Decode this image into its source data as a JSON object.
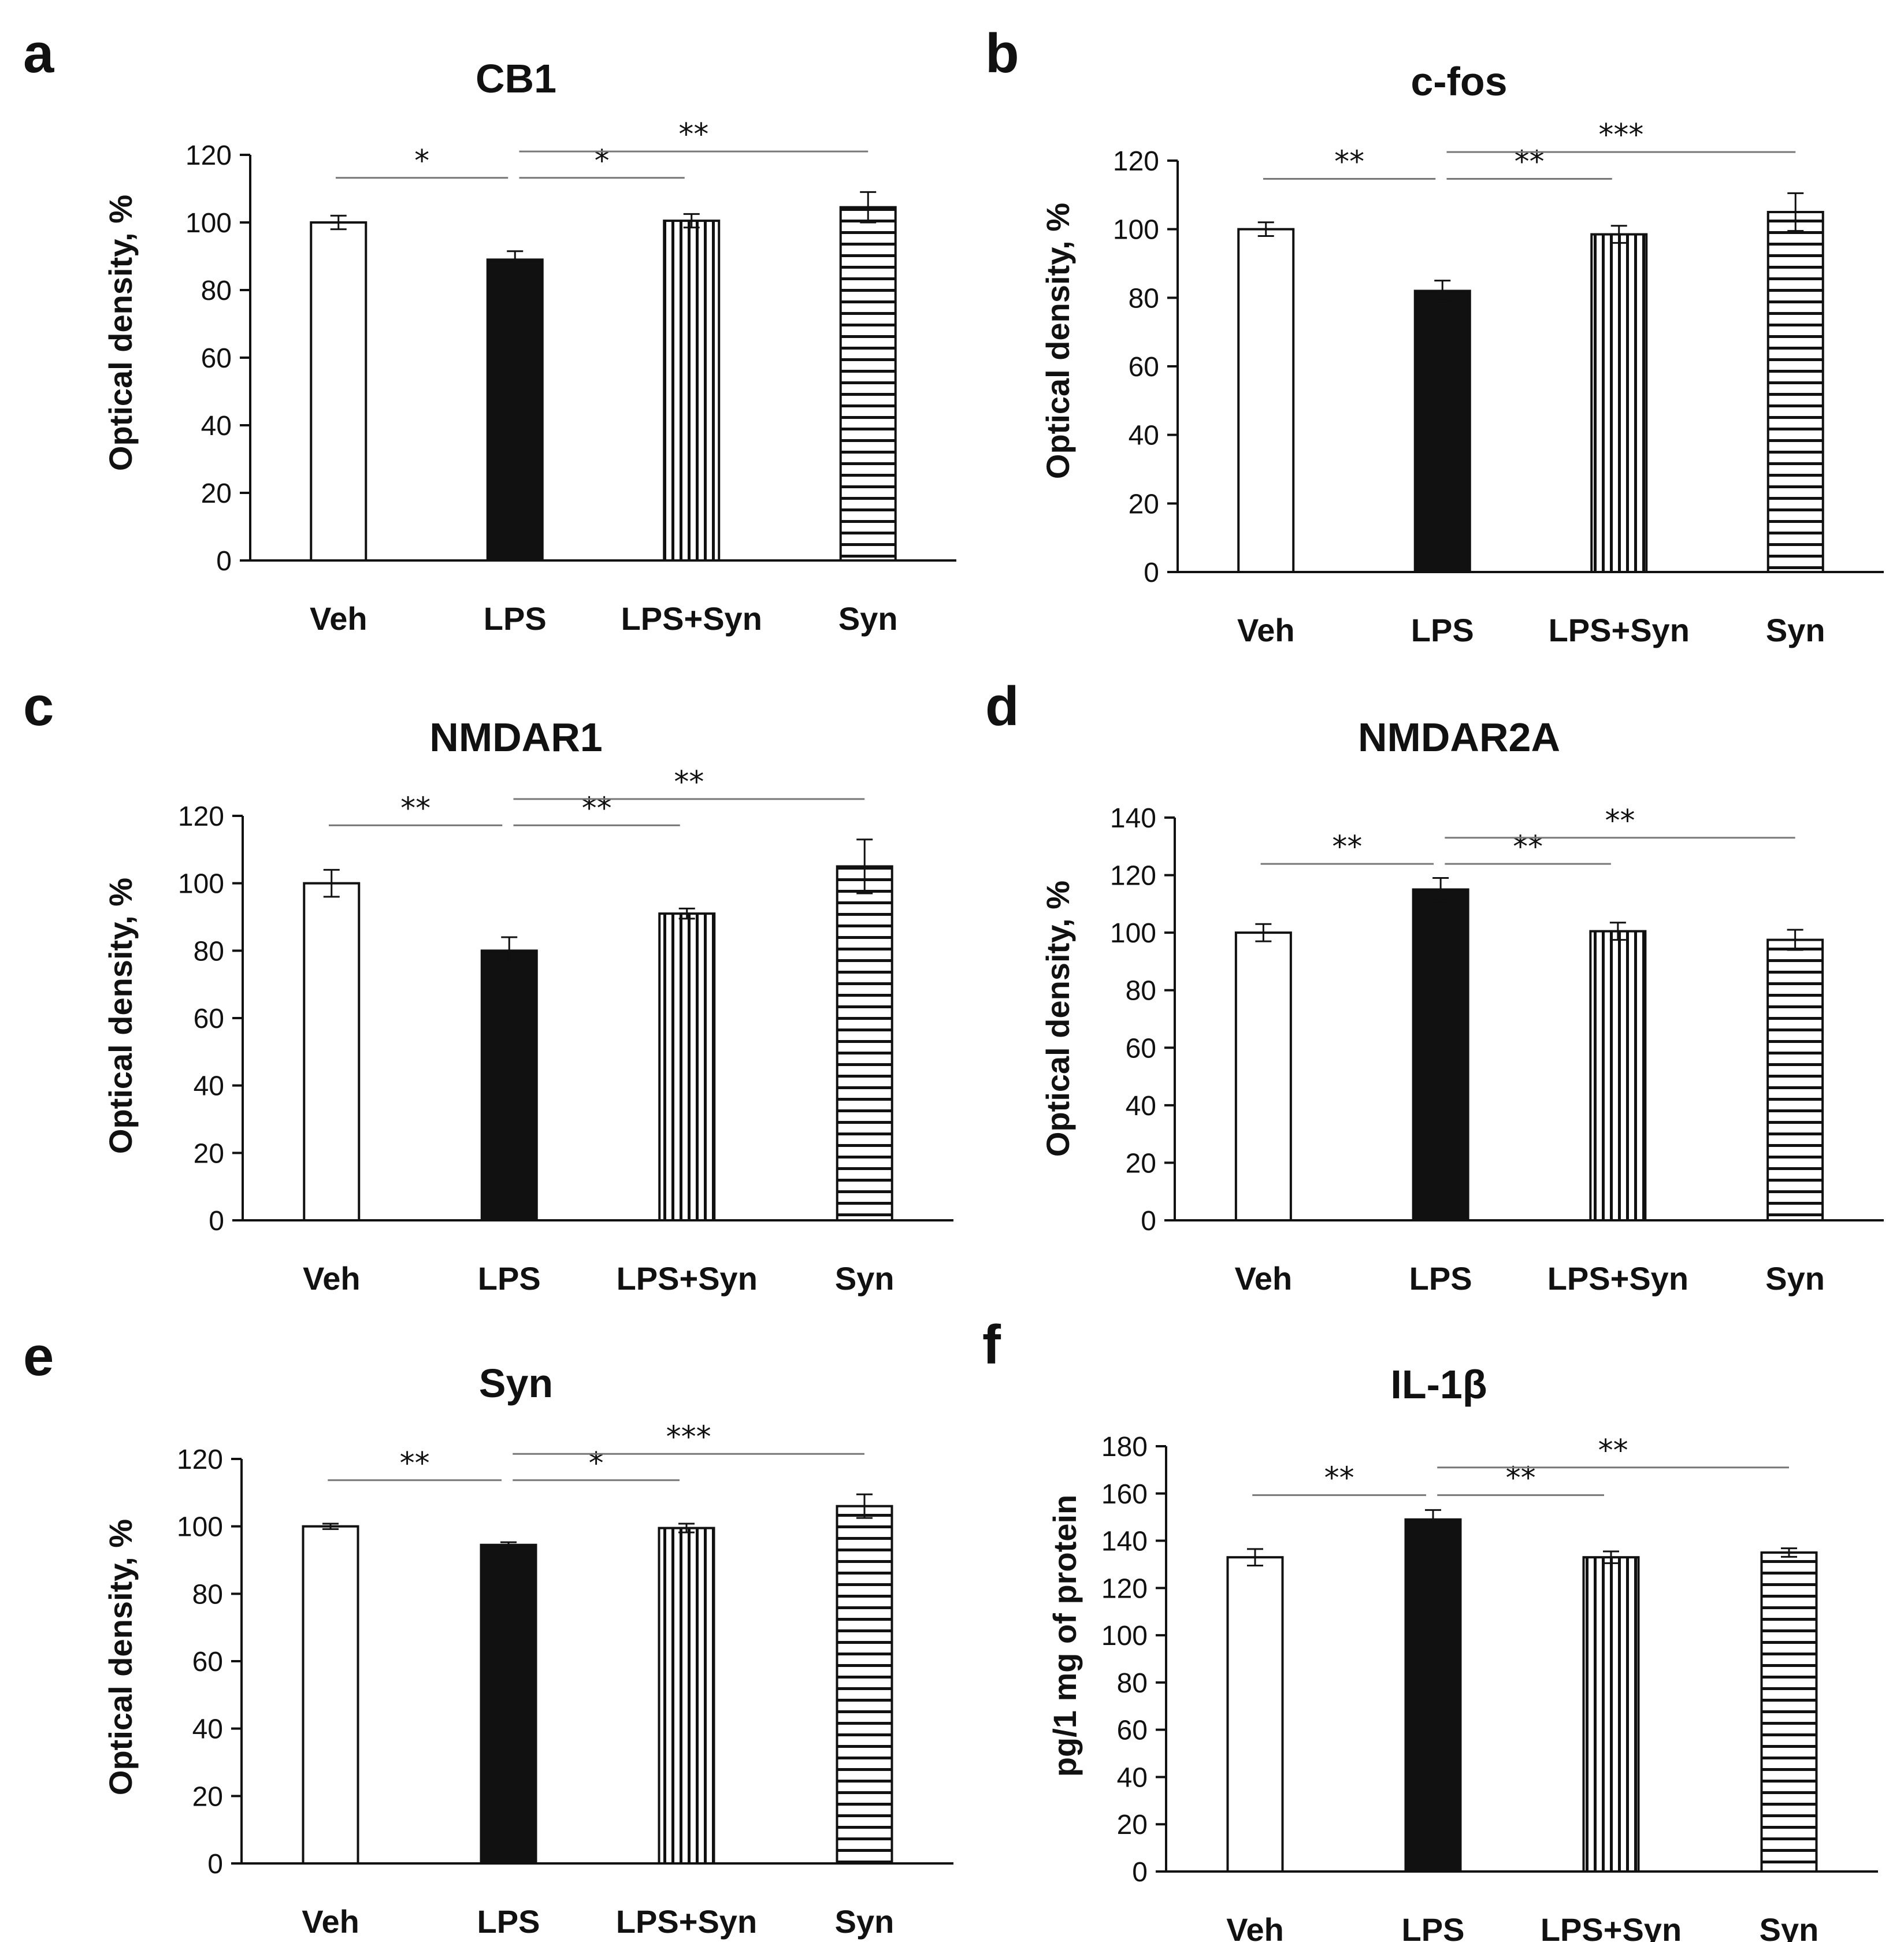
{
  "chart_data": [
    {
      "panel": "a",
      "type": "bar",
      "title": "CB1",
      "ylabel": "Optical density, %",
      "xlabel": "",
      "categories": [
        "Veh",
        "LPS",
        "LPS+Syn",
        "Syn"
      ],
      "values": [
        100,
        89,
        100.5,
        104.5
      ],
      "errors": [
        2,
        2.5,
        2,
        4.5
      ],
      "ylim": [
        0,
        120
      ],
      "yticks": [
        0,
        20,
        40,
        60,
        80,
        100,
        120
      ],
      "significance": [
        {
          "from": 0,
          "to": 1,
          "label": "*"
        },
        {
          "from": 1,
          "to": 2,
          "label": "*"
        },
        {
          "from": 1,
          "to": 3,
          "label": "**"
        }
      ]
    },
    {
      "panel": "b",
      "type": "bar",
      "title": "c-fos",
      "ylabel": "Optical density, %",
      "xlabel": "",
      "categories": [
        "Veh",
        "LPS",
        "LPS+Syn",
        "Syn"
      ],
      "values": [
        100,
        82,
        98.5,
        105
      ],
      "errors": [
        2,
        3,
        2.5,
        5.5
      ],
      "ylim": [
        0,
        120
      ],
      "yticks": [
        0,
        20,
        40,
        60,
        80,
        100,
        120
      ],
      "significance": [
        {
          "from": 0,
          "to": 1,
          "label": "**"
        },
        {
          "from": 1,
          "to": 2,
          "label": "**"
        },
        {
          "from": 1,
          "to": 3,
          "label": "***"
        }
      ]
    },
    {
      "panel": "c",
      "type": "bar",
      "title": "NMDAR1",
      "ylabel": "Optical density, %",
      "xlabel": "",
      "categories": [
        "Veh",
        "LPS",
        "LPS+Syn",
        "Syn"
      ],
      "values": [
        100,
        80,
        91,
        105
      ],
      "errors": [
        4,
        4,
        1.5,
        8
      ],
      "ylim": [
        0,
        120
      ],
      "yticks": [
        0,
        20,
        40,
        60,
        80,
        100,
        120
      ],
      "significance": [
        {
          "from": 0,
          "to": 1,
          "label": "**"
        },
        {
          "from": 1,
          "to": 2,
          "label": "**"
        },
        {
          "from": 1,
          "to": 3,
          "label": "**"
        }
      ]
    },
    {
      "panel": "d",
      "type": "bar",
      "title": "NMDAR2A",
      "ylabel": "Optical density, %",
      "xlabel": "",
      "categories": [
        "Veh",
        "LPS",
        "LPS+Syn",
        "Syn"
      ],
      "values": [
        100,
        115,
        100.5,
        97.5
      ],
      "errors": [
        3,
        4,
        3,
        3.5
      ],
      "ylim": [
        0,
        140
      ],
      "yticks": [
        0,
        20,
        40,
        60,
        80,
        100,
        120,
        140
      ],
      "significance": [
        {
          "from": 0,
          "to": 1,
          "label": "**"
        },
        {
          "from": 1,
          "to": 2,
          "label": "**"
        },
        {
          "from": 1,
          "to": 3,
          "label": "**"
        }
      ]
    },
    {
      "panel": "e",
      "type": "bar",
      "title": "Syn",
      "ylabel": "Optical density, %",
      "xlabel": "",
      "categories": [
        "Veh",
        "LPS",
        "LPS+Syn",
        "Syn"
      ],
      "values": [
        100,
        94.5,
        99.5,
        106
      ],
      "errors": [
        0.8,
        0.8,
        1.3,
        3.5
      ],
      "ylim": [
        0,
        120
      ],
      "yticks": [
        0,
        20,
        40,
        60,
        80,
        100,
        120
      ],
      "significance": [
        {
          "from": 0,
          "to": 1,
          "label": "**"
        },
        {
          "from": 1,
          "to": 2,
          "label": "*"
        },
        {
          "from": 1,
          "to": 3,
          "label": "***"
        }
      ]
    },
    {
      "panel": "f",
      "type": "bar",
      "title": "IL-1β",
      "ylabel": "pg/1 mg of protein",
      "xlabel": "",
      "categories": [
        "Veh",
        "LPS",
        "LPS+Syn",
        "Syn"
      ],
      "values": [
        133,
        149,
        133,
        135
      ],
      "errors": [
        3.5,
        4,
        2.5,
        1.8
      ],
      "ylim": [
        0,
        180
      ],
      "yticks": [
        0,
        20,
        40,
        60,
        80,
        100,
        120,
        140,
        160,
        180
      ],
      "significance": [
        {
          "from": 0,
          "to": 1,
          "label": "**"
        },
        {
          "from": 1,
          "to": 2,
          "label": "**"
        },
        {
          "from": 1,
          "to": 3,
          "label": "**"
        }
      ]
    }
  ],
  "bar_styles": [
    "open",
    "solid",
    "vertical-stripes",
    "horizontal-stripes"
  ],
  "colors": {
    "ink": "#111111",
    "grid": "#777777",
    "fill": "#ffffff"
  }
}
